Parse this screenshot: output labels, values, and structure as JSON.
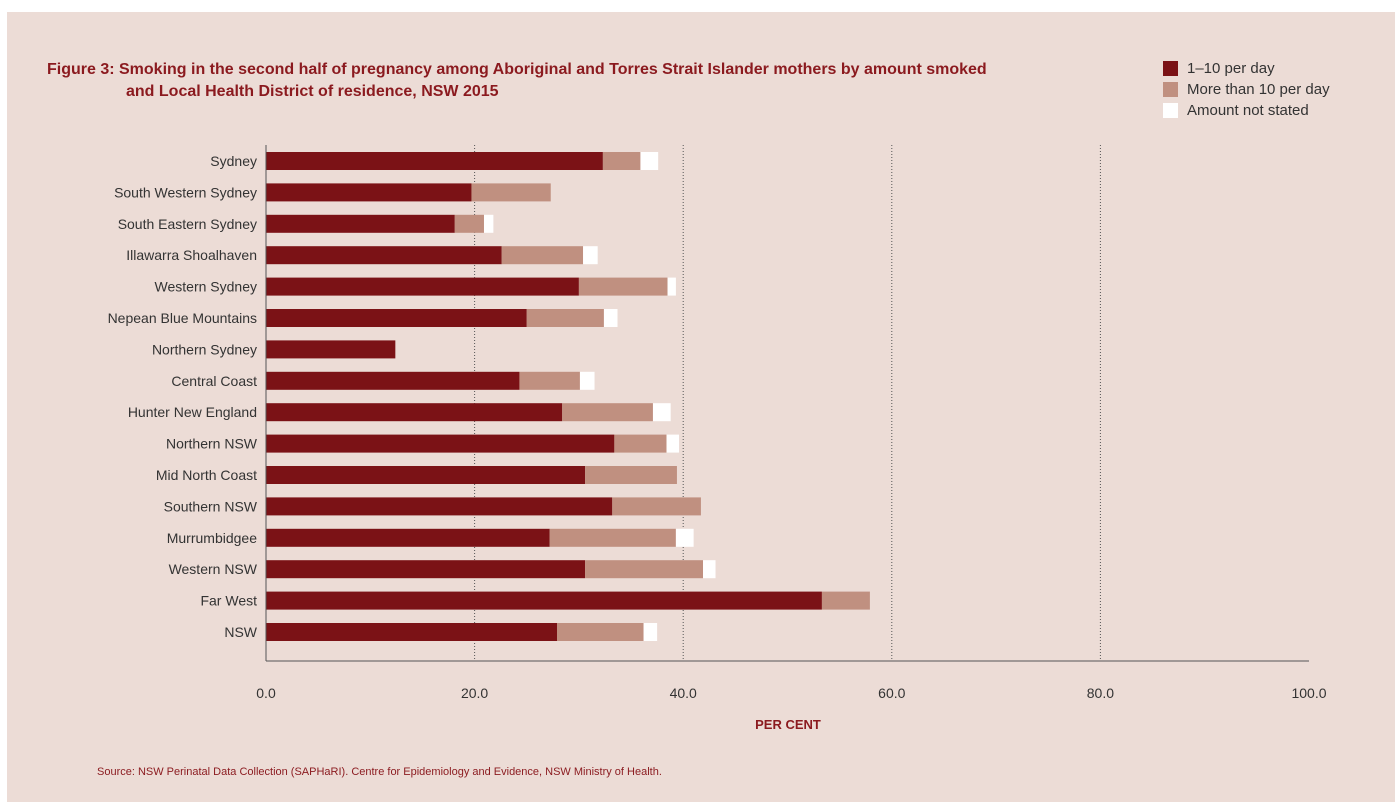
{
  "chart_data": {
    "type": "bar",
    "orientation": "horizontal",
    "stacked": true,
    "title_line1": "Figure 3: Smoking in the second half of pregnancy among Aboriginal and Torres Strait Islander mothers by amount smoked",
    "title_line2": "and Local Health District of residence, NSW 2015",
    "xlabel": "PER CENT",
    "ylabel": "",
    "xlim": [
      0,
      100
    ],
    "xticks": [
      "0.0",
      "20.0",
      "40.0",
      "60.0",
      "80.0",
      "100.0"
    ],
    "xtick_values": [
      0,
      20,
      40,
      60,
      80,
      100
    ],
    "grid": "vertical dotted at 20, 40, 60, 80",
    "legend_position": "top-right",
    "categories": [
      "Sydney",
      "South Western Sydney",
      "South Eastern Sydney",
      "Illawarra Shoalhaven",
      "Western Sydney",
      "Nepean Blue Mountains",
      "Northern Sydney",
      "Central Coast",
      "Hunter New England",
      "Northern NSW",
      "Mid North Coast",
      "Southern NSW",
      "Murrumbidgee",
      "Western NSW",
      "Far West",
      "NSW"
    ],
    "series": [
      {
        "name": "1–10 per day",
        "color": "#7b1216",
        "values": [
          32.3,
          19.7,
          18.1,
          22.6,
          30.0,
          25.0,
          12.4,
          24.3,
          28.4,
          33.4,
          30.6,
          33.2,
          27.2,
          30.6,
          53.3,
          27.9
        ]
      },
      {
        "name": "More than 10 per day",
        "color": "#c09080",
        "values": [
          3.6,
          7.6,
          2.8,
          7.8,
          8.5,
          7.4,
          0.0,
          5.8,
          8.7,
          5.0,
          8.8,
          8.5,
          12.1,
          11.3,
          4.6,
          8.3
        ]
      },
      {
        "name": "Amount not stated",
        "color": "#ffffff",
        "values": [
          1.7,
          0.0,
          0.9,
          1.4,
          0.8,
          1.3,
          0.0,
          1.4,
          1.7,
          1.2,
          0.0,
          0.0,
          1.7,
          1.2,
          0.0,
          1.3
        ]
      }
    ]
  },
  "source": "Source: NSW Perinatal Data Collection (SAPHaRI). Centre for Epidemiology and Evidence, NSW Ministry of Health."
}
